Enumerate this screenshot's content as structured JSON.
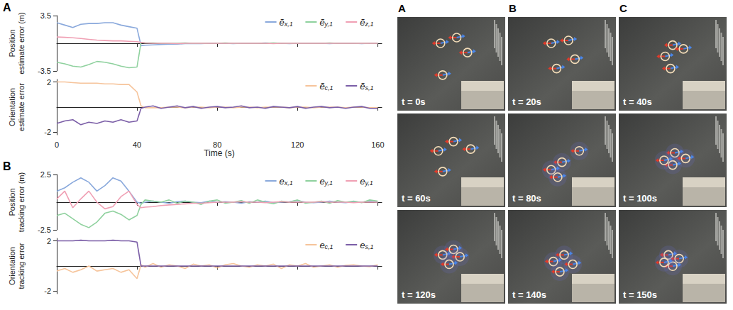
{
  "chart_data": [
    {
      "type": "line",
      "panel": "A",
      "ylabel": "Position estimate error (m)",
      "x": [
        0,
        4,
        8,
        12,
        16,
        20,
        24,
        28,
        32,
        36,
        40,
        42,
        44,
        48,
        52,
        56,
        60,
        64,
        68,
        72,
        76,
        80,
        84,
        88,
        92,
        96,
        100,
        104,
        108,
        112,
        116,
        120,
        124,
        128,
        132,
        136,
        140,
        144,
        148,
        152,
        156,
        160
      ],
      "xlim": [
        0,
        162
      ],
      "xticks": [
        0,
        40,
        80,
        120,
        160
      ],
      "ylim": [
        -3.5,
        3.5
      ],
      "yticks": [
        3.5,
        -3.5
      ],
      "grid": false,
      "legend": "upper right",
      "tick_labels": "y",
      "series": [
        {
          "name": "ẽx,1",
          "color": "#8aa9dc",
          "values": [
            2.6,
            2.3,
            2.0,
            2.4,
            2.5,
            2.5,
            2.6,
            2.6,
            2.3,
            2.1,
            1.9,
            -0.3,
            -0.25,
            -0.2,
            -0.15,
            -0.1,
            -0.1,
            -0.05,
            -0.05,
            -0.05,
            0,
            0,
            0,
            -0.05,
            0,
            0,
            0,
            0.05,
            0,
            0,
            -0.05,
            0,
            0,
            0,
            0,
            -0.05,
            0,
            0,
            0,
            -0.05,
            0,
            0
          ]
        },
        {
          "name": "ẽy,1",
          "color": "#8fd19e",
          "values": [
            -2.4,
            -2.6,
            -2.9,
            -3.0,
            -2.7,
            -2.3,
            -2.4,
            -2.6,
            -2.9,
            -3.1,
            -3.0,
            0.1,
            0.05,
            0.05,
            0,
            0,
            0,
            0.05,
            0,
            0,
            0,
            0,
            0.05,
            0,
            0,
            0,
            0,
            0,
            0.05,
            0,
            0,
            0,
            0,
            0,
            0,
            0.05,
            0,
            0,
            0,
            0,
            0,
            0
          ]
        },
        {
          "name": "ẽz,1",
          "color": "#f0a0b4",
          "values": [
            0.8,
            0.75,
            0.7,
            0.6,
            0.5,
            0.4,
            0.35,
            0.3,
            0.3,
            0.25,
            0.2,
            0.1,
            0.05,
            0,
            0,
            0,
            -0.05,
            0,
            0,
            0,
            0,
            0,
            0,
            0,
            0,
            0,
            0,
            0,
            -0.05,
            0,
            0,
            0,
            0,
            0,
            0,
            0,
            0,
            0,
            0,
            0,
            0,
            0
          ]
        }
      ]
    },
    {
      "type": "line",
      "ylabel": "Orientation estimate error",
      "xlabel": "Time (s)",
      "x": [
        0,
        4,
        8,
        12,
        16,
        20,
        24,
        28,
        32,
        36,
        40,
        42,
        44,
        48,
        52,
        56,
        60,
        64,
        68,
        72,
        76,
        80,
        84,
        88,
        92,
        96,
        100,
        104,
        108,
        112,
        116,
        120,
        124,
        128,
        132,
        136,
        140,
        144,
        148,
        152,
        156,
        160
      ],
      "xlim": [
        0,
        162
      ],
      "xticks": [
        0,
        40,
        80,
        120,
        160
      ],
      "ylim": [
        -2.2,
        2.2
      ],
      "yticks": [
        2,
        -2
      ],
      "grid": false,
      "legend": "upper right",
      "series": [
        {
          "name": "ẽc,1",
          "color": "#f6c49b",
          "values": [
            2.0,
            2.0,
            1.95,
            1.9,
            1.9,
            1.9,
            1.85,
            1.85,
            1.8,
            1.8,
            1.2,
            0.1,
            -0.05,
            -0.05,
            -0.05,
            0,
            0,
            -0.05,
            0,
            0,
            -0.05,
            0,
            0,
            -0.05,
            0,
            0,
            -0.05,
            0,
            0,
            0,
            -0.05,
            0,
            0,
            -0.05,
            0,
            0,
            0,
            -0.05,
            0,
            0,
            -0.05,
            -0.05
          ]
        },
        {
          "name": "ẽs,1",
          "color": "#7b5ea7",
          "values": [
            -1.3,
            -1.1,
            -1.0,
            -1.4,
            -1.2,
            -1.3,
            -1.1,
            -1.2,
            -1.0,
            -1.2,
            -1.1,
            -0.1,
            0.0,
            0.1,
            -0.1,
            0,
            0.1,
            -0.05,
            0.05,
            -0.1,
            0,
            0.05,
            -0.05,
            0,
            0.1,
            -0.05,
            0,
            -0.1,
            0.05,
            0,
            -0.05,
            0.05,
            -0.1,
            0,
            0.05,
            -0.05,
            0,
            -0.1,
            0,
            0.05,
            -0.1,
            -0.1
          ]
        }
      ]
    },
    {
      "type": "line",
      "panel": "B",
      "ylabel": "Position tracking error (m)",
      "x": [
        0,
        4,
        8,
        12,
        16,
        20,
        24,
        28,
        32,
        36,
        40,
        42,
        44,
        48,
        52,
        56,
        60,
        64,
        68,
        72,
        76,
        80,
        84,
        88,
        92,
        96,
        100,
        104,
        108,
        112,
        116,
        120,
        124,
        128,
        132,
        136,
        140,
        144,
        148,
        152,
        156,
        160
      ],
      "xlim": [
        0,
        162
      ],
      "xticks": [
        0,
        40,
        80,
        120,
        160
      ],
      "ylim": [
        -2.5,
        2.5
      ],
      "yticks": [
        2.5,
        -2.5
      ],
      "grid": false,
      "legend": "upper right",
      "tick_labels": "y",
      "series": [
        {
          "name": "ex,1",
          "color": "#8aa9dc",
          "values": [
            1.0,
            1.3,
            1.8,
            2.2,
            1.8,
            1.0,
            1.5,
            2.2,
            1.9,
            1.0,
            0.0,
            -0.1,
            0.0,
            0.1,
            0,
            -0.1,
            0.05,
            0.1,
            0,
            -0.05,
            0.1,
            0,
            0.05,
            0,
            -0.1,
            0.05,
            0,
            0.1,
            -0.05,
            0,
            0.05,
            0.15,
            0,
            -0.05,
            0,
            0.1,
            0,
            -0.05,
            0.05,
            0,
            0.1,
            0
          ]
        },
        {
          "name": "ey,1",
          "color": "#8fd19e",
          "values": [
            -1.2,
            -1.0,
            -1.5,
            -2.0,
            -2.3,
            -1.8,
            -1.0,
            -0.8,
            -1.1,
            -1.6,
            -1.2,
            -0.2,
            0.2,
            0.1,
            0,
            0.2,
            -0.1,
            0.1,
            0,
            -0.2,
            0.1,
            0.2,
            -0.1,
            0,
            0.15,
            -0.1,
            0.2,
            0,
            -0.15,
            0.1,
            0,
            0.2,
            -0.1,
            0,
            0.1,
            -0.1,
            0.15,
            0,
            0.1,
            -0.05,
            0.2,
            0.1
          ]
        },
        {
          "name": "ey,1",
          "color": "#f0a0b4",
          "values": [
            0.3,
            1.0,
            -0.5,
            0.3,
            1.0,
            0.0,
            -0.6,
            -0.4,
            0.5,
            1.0,
            -0.2,
            -0.5,
            -0.45,
            -0.4,
            -0.3,
            -0.25,
            -0.2,
            -0.15,
            -0.1,
            -0.1,
            -0.05,
            0,
            0,
            0,
            0.05,
            0,
            0,
            -0.05,
            0,
            0.05,
            0,
            0,
            0,
            0,
            0.05,
            0,
            0,
            0,
            -0.05,
            0,
            0,
            0
          ]
        }
      ]
    },
    {
      "type": "line",
      "ylabel": "Orientation tracking error",
      "x": [
        0,
        4,
        8,
        12,
        16,
        20,
        24,
        28,
        32,
        36,
        40,
        42,
        44,
        48,
        52,
        56,
        60,
        64,
        68,
        72,
        76,
        80,
        84,
        88,
        92,
        96,
        100,
        104,
        108,
        112,
        116,
        120,
        124,
        128,
        132,
        136,
        140,
        144,
        148,
        152,
        156,
        160
      ],
      "xlim": [
        0,
        162
      ],
      "xticks": [
        0,
        40,
        80,
        120,
        160
      ],
      "ylim": [
        -2.2,
        2.2
      ],
      "yticks": [
        2,
        -2
      ],
      "grid": false,
      "legend": "upper right",
      "tick_labels": "y",
      "series": [
        {
          "name": "ec,1",
          "color": "#f6c49b",
          "values": [
            -0.4,
            -0.2,
            -0.5,
            -0.3,
            0.0,
            -0.4,
            -0.3,
            -0.2,
            -0.5,
            -0.3,
            -1.0,
            0.1,
            -0.1,
            0.2,
            -0.1,
            0.1,
            0,
            -0.2,
            0.15,
            0,
            0.1,
            -0.15,
            0.1,
            0.2,
            0,
            -0.1,
            0.1,
            0,
            0.15,
            -0.2,
            0.1,
            0,
            0.2,
            -0.1,
            0,
            0.1,
            -0.1,
            0.05,
            0.1,
            0,
            -0.05,
            0.1
          ]
        },
        {
          "name": "es,1",
          "color": "#7b5ea7",
          "values": [
            2.0,
            2.0,
            2.0,
            2.05,
            2.0,
            2.0,
            2.0,
            2.05,
            2.0,
            2.0,
            1.9,
            0.0,
            0.0,
            0,
            0,
            0,
            0,
            0,
            0,
            0,
            0,
            0,
            0,
            0,
            0,
            0,
            0,
            0,
            0,
            0,
            0,
            0,
            0,
            0,
            0,
            0,
            0,
            0,
            0,
            0,
            0,
            0
          ]
        }
      ]
    }
  ],
  "snapshots": {
    "columns": [
      "A",
      "B",
      "C"
    ],
    "frames": [
      "t = 0s",
      "t = 20s",
      "t = 40s",
      "t = 60s",
      "t = 80s",
      "t = 100s",
      "t = 120s",
      "t = 140s",
      "t = 150s"
    ]
  }
}
